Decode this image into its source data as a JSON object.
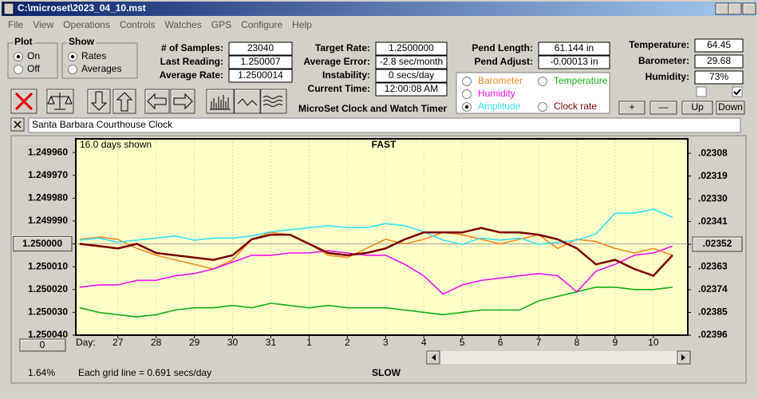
{
  "window": {
    "title": "C:\\microset\\2023_04_10.mst",
    "menu": [
      "File",
      "View",
      "Operations",
      "Controls",
      "Watches",
      "GPS",
      "Configure",
      "Help"
    ]
  },
  "plot": {
    "title": "Plot",
    "options": [
      "On",
      "Off"
    ],
    "selected": 0
  },
  "show": {
    "title": "Show",
    "options": [
      "Rates",
      "Averages"
    ],
    "selected": 0
  },
  "fields": [
    {
      "label": "# of Samples:",
      "value": "23040"
    },
    {
      "label": "Last Reading:",
      "value": "1.250007"
    },
    {
      "label": "Average Rate:",
      "value": "1.2500014"
    },
    {
      "label": "Target Rate:",
      "value": "1.2500000"
    },
    {
      "label": "Average Error:",
      "value": "-2.8 sec/month"
    },
    {
      "label": "Instability:",
      "value": "0 secs/day"
    },
    {
      "label": "Current Time:",
      "value": "12:00:08 AM"
    },
    {
      "label": "Pend Length:",
      "value": "61.144 in"
    },
    {
      "label": "Pend Adjust:",
      "value": "-0.00013 in"
    },
    {
      "label": "Temperature:",
      "value": "64.45"
    },
    {
      "label": "Barometer:",
      "value": "29.68"
    },
    {
      "label": "Humidity:",
      "value": "73%"
    }
  ],
  "app_title": "MicroSet Clock and Watch Timer",
  "buttons": [
    "+",
    "—",
    "Up",
    "Down"
  ],
  "checkboxes": [
    false,
    true
  ],
  "clock_name": "Santa Barbara Courthouse Clock",
  "chart_data": {
    "type": "line",
    "days_shown": "16.0 days shown",
    "top_label": "FAST",
    "bottom_label": "SLOW",
    "grid_note": "Each grid line = 0.691 secs/day",
    "percent": "1.64%",
    "x_label": "Day:",
    "offset_button": "0",
    "selected_series": 3,
    "x": [
      -1,
      -0.5,
      0,
      0.5,
      1,
      1.5,
      2,
      2.5,
      3,
      3.5,
      4,
      4.5,
      5,
      5.5,
      6,
      6.5,
      7,
      7.5,
      8,
      8.5,
      9,
      9.5,
      10,
      10.5,
      11,
      11.5,
      12,
      12.5,
      13,
      13.5,
      14,
      14.5
    ],
    "xlim": [
      -1.1,
      14.9
    ],
    "xticks": [
      {
        "value": 0,
        "label": "27"
      },
      {
        "value": 1,
        "label": "28"
      },
      {
        "value": 2,
        "label": "29"
      },
      {
        "value": 3,
        "label": "30"
      },
      {
        "value": 4,
        "label": "31"
      },
      {
        "value": 5,
        "label": "1"
      },
      {
        "value": 6,
        "label": "2"
      },
      {
        "value": 7,
        "label": "3"
      },
      {
        "value": 8,
        "label": "4"
      },
      {
        "value": 9,
        "label": "5"
      },
      {
        "value": 10,
        "label": "6"
      },
      {
        "value": 11,
        "label": "7"
      },
      {
        "value": 12,
        "label": "8"
      },
      {
        "value": 13,
        "label": "9"
      },
      {
        "value": 14,
        "label": "10"
      }
    ],
    "ylim": [
      1.25004,
      1.249954
    ],
    "yticks": [
      {
        "value": 1.24996,
        "label": "1.249960"
      },
      {
        "value": 1.24997,
        "label": "1.249970"
      },
      {
        "value": 1.24998,
        "label": "1.249980"
      },
      {
        "value": 1.24999,
        "label": "1.249990"
      },
      {
        "value": 1.25,
        "label": "1.250000"
      },
      {
        "value": 1.25001,
        "label": "1.250010"
      },
      {
        "value": 1.25002,
        "label": "1.250020"
      },
      {
        "value": 1.25003,
        "label": "1.250030"
      },
      {
        "value": 1.25004,
        "label": "1.250040"
      }
    ],
    "y2lim": [
      0.02396,
      0.02301
    ],
    "y2ticks": [
      {
        "value": 0.02308,
        "label": ".02308"
      },
      {
        "value": 0.02319,
        "label": ".02319"
      },
      {
        "value": 0.0233,
        "label": ".02330"
      },
      {
        "value": 0.02341,
        "label": ".02341"
      },
      {
        "value": 0.02352,
        "label": ".02352"
      },
      {
        "value": 0.02363,
        "label": ".02363"
      },
      {
        "value": 0.02374,
        "label": ".02374"
      },
      {
        "value": 0.02385,
        "label": ".02385"
      },
      {
        "value": 0.02396,
        "label": ".02396"
      }
    ],
    "series": [
      {
        "name": "Barometer",
        "color": "#f08a20",
        "values": [
          1.249998,
          1.249997,
          1.249998,
          1.250002,
          1.250005,
          1.250007,
          1.250009,
          1.250011,
          1.250007,
          1.249998,
          1.249995,
          1.249996,
          1.25,
          1.250005,
          1.250006,
          1.250002,
          1.249998,
          1.25,
          1.249998,
          1.249995,
          1.249996,
          1.249998,
          1.25,
          1.249998,
          1.249996,
          1.250002,
          1.249998,
          1.249999,
          1.250002,
          1.250004,
          1.250002,
          1.250005
        ]
      },
      {
        "name": "Temperature",
        "color": "#10b010",
        "values": [
          1.250028,
          1.25003,
          1.250031,
          1.250032,
          1.250031,
          1.250029,
          1.250028,
          1.250028,
          1.250027,
          1.250028,
          1.250026,
          1.250027,
          1.250028,
          1.250027,
          1.250028,
          1.250028,
          1.250028,
          1.250029,
          1.25003,
          1.250031,
          1.25003,
          1.250029,
          1.250029,
          1.250029,
          1.250025,
          1.250023,
          1.250021,
          1.250019,
          1.250019,
          1.25002,
          1.25002,
          1.250019
        ]
      },
      {
        "name": "Humidity",
        "color": "#ee10ee",
        "values": [
          1.250019,
          1.250018,
          1.250018,
          1.250016,
          1.250016,
          1.250014,
          1.250013,
          1.250011,
          1.250008,
          1.250005,
          1.250005,
          1.250004,
          1.250004,
          1.250003,
          1.250004,
          1.250005,
          1.250005,
          1.250009,
          1.250014,
          1.250022,
          1.250018,
          1.250016,
          1.250015,
          1.250014,
          1.250013,
          1.250014,
          1.250021,
          1.250012,
          1.250009,
          1.250005,
          1.250004,
          1.250001
        ]
      },
      {
        "name": "Amplitude",
        "color": "#33e0f0",
        "axis": "y2",
        "values": [
          0.0235,
          0.02349,
          0.02351,
          0.0235,
          0.02349,
          0.02348,
          0.0235,
          0.02349,
          0.02349,
          0.02348,
          0.02346,
          0.02345,
          0.02344,
          0.02343,
          0.02344,
          0.02344,
          0.02342,
          0.02343,
          0.02346,
          0.0235,
          0.02352,
          0.02349,
          0.0235,
          0.02349,
          0.02352,
          0.02351,
          0.0235,
          0.02347,
          0.02337,
          0.02337,
          0.02335,
          0.02339
        ]
      },
      {
        "name": "Clock rate",
        "color": "#7a0000",
        "values": [
          1.25,
          1.250001,
          1.250002,
          1.25,
          1.250004,
          1.250005,
          1.250006,
          1.250007,
          1.250005,
          1.249998,
          1.249996,
          1.249996,
          1.25,
          1.250004,
          1.250005,
          1.250004,
          1.250002,
          1.249998,
          1.249995,
          1.249995,
          1.249995,
          1.249993,
          1.249995,
          1.249995,
          1.249996,
          1.249998,
          1.250002,
          1.250009,
          1.250007,
          1.250011,
          1.250014,
          1.250005
        ]
      }
    ]
  }
}
